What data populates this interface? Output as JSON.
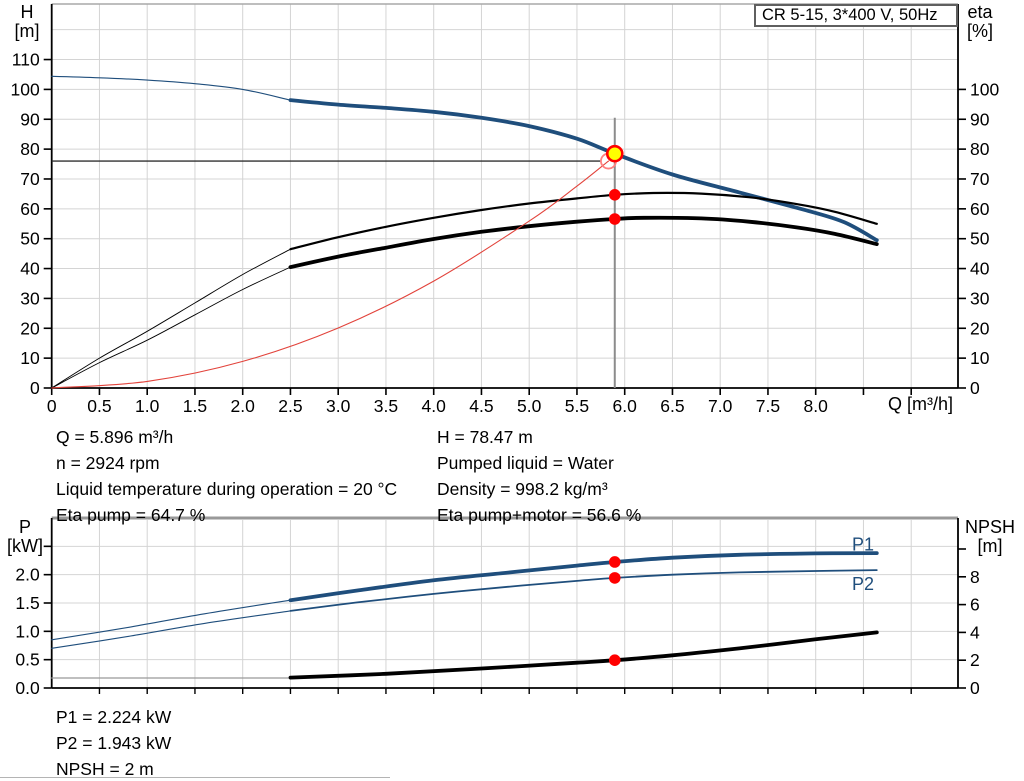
{
  "title_box": {
    "label": "CR 5-15, 3*400 V, 50Hz"
  },
  "colors": {
    "blue": "#1f4e7c",
    "black": "#000000",
    "red_curve": "#e2433b",
    "red_dot": "#ff0000",
    "red_ring": "#ff8080",
    "yellow": "#ffff00",
    "grid": "#d4d4d4",
    "axis": "#000000",
    "border_gray": "#a8a8a8",
    "border_gray2": "#999999",
    "op_line": "#8c8c8c",
    "ref_line": "#303030",
    "npsh_thin": "#999999"
  },
  "axis_labels": {
    "top_left_1": "H",
    "top_left_2": "[m]",
    "top_right_1": "eta",
    "top_right_2": "[%]",
    "x": "Q [m³/h]",
    "bottom_left_1": "P",
    "bottom_left_2": "[kW]",
    "bottom_right_1": "NPSH",
    "bottom_right_2": "[m]"
  },
  "annotations": {
    "left": [
      "Q = 5.896 m³/h",
      "n = 2924 rpm",
      "Liquid temperature during operation = 20 °C",
      "Eta pump = 64.7 %"
    ],
    "right": [
      "H = 78.47 m",
      "Pumped liquid = Water",
      "Density = 998.2 kg/m³",
      "Eta pump+motor = 56.6 %"
    ],
    "bottom": [
      "P1 = 2.224 kW",
      "P2 = 1.943 kW",
      "NPSH = 2 m"
    ]
  },
  "chart_data": [
    {
      "type": "line",
      "title": "CR 5-15, 3*400 V, 50Hz",
      "xlabel": "Q [m³/h]",
      "ylabel_left": "H [m]",
      "ylabel_right": "eta [%]",
      "xlim": [
        0,
        9.49
      ],
      "ylim_left": [
        0,
        128.6
      ],
      "ylim_right": [
        0,
        128.6
      ],
      "grid": true,
      "x_tick_values": [
        0,
        0.5,
        1,
        1.5,
        2,
        2.5,
        3,
        3.5,
        4,
        4.5,
        5,
        5.5,
        6,
        6.5,
        7,
        7.5,
        8
      ],
      "x_tick_labels": [
        "0",
        "0.5",
        "1.0",
        "1.5",
        "2.0",
        "2.5",
        "3.0",
        "3.5",
        "4.0",
        "4.5",
        "5.0",
        "5.5",
        "6.0",
        "6.5",
        "7.0",
        "7.5",
        "8.0"
      ],
      "x_minor_ticks": [
        8.5,
        9
      ],
      "left_tick_values": [
        0,
        10,
        20,
        30,
        40,
        50,
        60,
        70,
        80,
        90,
        100,
        110
      ],
      "right_tick_values": [
        0,
        10,
        20,
        30,
        40,
        50,
        60,
        70,
        80,
        90,
        100
      ],
      "series": [
        {
          "name": "qh-curve",
          "axis": "left",
          "color_key": "blue",
          "thin_width": 1.1,
          "thick_width": 3.8,
          "thick_from": 2.5,
          "points": [
            [
              0,
              104.4
            ],
            [
              0.5,
              103.9
            ],
            [
              1,
              103.1
            ],
            [
              1.5,
              101.9
            ],
            [
              2,
              100.0
            ],
            [
              2.5,
              96.4
            ],
            [
              3,
              94.9
            ],
            [
              3.5,
              93.8
            ],
            [
              4,
              92.5
            ],
            [
              4.5,
              90.5
            ],
            [
              5,
              87.7
            ],
            [
              5.5,
              83.5
            ],
            [
              5.896,
              78.47
            ],
            [
              6.5,
              71.5
            ],
            [
              7.2,
              65.5
            ],
            [
              7.9,
              59.5
            ],
            [
              8.3,
              55.5
            ],
            [
              8.64,
              49.5
            ]
          ]
        },
        {
          "name": "eta-pump-curve",
          "axis": "right",
          "color_key": "black",
          "thin_width": 0.9,
          "thick_width": 2.2,
          "thick_from": 2.5,
          "points": [
            [
              0,
              0
            ],
            [
              0.5,
              10
            ],
            [
              1,
              19
            ],
            [
              1.5,
              28.5
            ],
            [
              2,
              38
            ],
            [
              2.5,
              46.5
            ],
            [
              3,
              50.5
            ],
            [
              3.5,
              54
            ],
            [
              4,
              57
            ],
            [
              4.5,
              59.6
            ],
            [
              5,
              61.8
            ],
            [
              5.5,
              63.5
            ],
            [
              5.896,
              64.7
            ],
            [
              6.3,
              65.3
            ],
            [
              6.8,
              65.1
            ],
            [
              7.3,
              63.9
            ],
            [
              7.8,
              61.6
            ],
            [
              8.2,
              59
            ],
            [
              8.64,
              55
            ]
          ]
        },
        {
          "name": "eta-pump-motor-curve",
          "axis": "right",
          "color_key": "black",
          "thin_width": 0.9,
          "thick_width": 3.8,
          "thick_from": 2.5,
          "points": [
            [
              0,
              0
            ],
            [
              0.5,
              8.5
            ],
            [
              1,
              16
            ],
            [
              1.5,
              24.5
            ],
            [
              2,
              33
            ],
            [
              2.5,
              40.5
            ],
            [
              3,
              44
            ],
            [
              3.5,
              47
            ],
            [
              4,
              49.9
            ],
            [
              4.5,
              52.3
            ],
            [
              5,
              54.2
            ],
            [
              5.5,
              55.7
            ],
            [
              5.896,
              56.6
            ],
            [
              6.2,
              57
            ],
            [
              6.8,
              56.8
            ],
            [
              7.3,
              55.7
            ],
            [
              7.8,
              53.8
            ],
            [
              8.2,
              51.6
            ],
            [
              8.64,
              48.2
            ]
          ]
        },
        {
          "name": "system-curve",
          "axis": "left",
          "color_key": "red_curve",
          "thin_width": 1.1,
          "thick_width": 1.1,
          "thick_from": 99,
          "points": [
            [
              0,
              0
            ],
            [
              1,
              2.2
            ],
            [
              2,
              8.9
            ],
            [
              3,
              20.1
            ],
            [
              4,
              35.8
            ],
            [
              5,
              55.9
            ],
            [
              5.5,
              67.6
            ],
            [
              5.83,
              76
            ]
          ]
        }
      ],
      "ref_lines": {
        "horizontal_H": 76,
        "horizontal_to_Q": 5.83,
        "vertical_Q": 5.896,
        "vertical_top_H": 90.5
      },
      "markers": [
        {
          "kind": "open",
          "Q": 5.83,
          "value": 76,
          "axis": "left"
        },
        {
          "kind": "duty",
          "Q": 5.896,
          "value": 78.47,
          "axis": "left"
        },
        {
          "kind": "dot",
          "Q": 5.896,
          "value": 64.7,
          "axis": "right"
        },
        {
          "kind": "dot",
          "Q": 5.896,
          "value": 56.6,
          "axis": "right"
        }
      ]
    },
    {
      "type": "line",
      "title": "Power and NPSH curves",
      "xlabel": "Q [m³/h]",
      "ylabel_left": "P [kW]",
      "ylabel_right": "NPSH [m]",
      "xlim": [
        0,
        9.49
      ],
      "ylim_left": [
        0,
        3.0
      ],
      "ylim_right": [
        0,
        12.23
      ],
      "grid": true,
      "x_minor_ticks": [
        0.5,
        1,
        1.5,
        2,
        2.5,
        3,
        3.5,
        4,
        4.5,
        5,
        5.5,
        6,
        6.5,
        7,
        7.5,
        8,
        8.5,
        9
      ],
      "left_tick_values": [
        0,
        0.5,
        1,
        1.5,
        2
      ],
      "left_tick_labels": [
        "0.0",
        "0.5",
        "1.0",
        "1.5",
        "2.0"
      ],
      "left_minor_ticks": [
        2.5
      ],
      "right_tick_values": [
        0,
        2,
        4,
        6,
        8
      ],
      "right_minor_ticks": [
        10
      ],
      "series": [
        {
          "name": "npsh-lowflow-line",
          "axis": "right",
          "color_key": "npsh_thin",
          "thin_width": 1.2,
          "thick_width": 1.2,
          "thick_from": 99,
          "points": [
            [
              0,
              0.72
            ],
            [
              1.2,
              0.72
            ],
            [
              2.5,
              0.72
            ]
          ]
        },
        {
          "name": "p1-curve",
          "axis": "left",
          "color_key": "blue",
          "thin_width": 1.1,
          "thick_width": 3.8,
          "thick_from": 2.5,
          "points": [
            [
              0,
              0.85
            ],
            [
              0.8,
              1.07
            ],
            [
              1.6,
              1.31
            ],
            [
              2.5,
              1.55
            ],
            [
              3.2,
              1.72
            ],
            [
              4,
              1.9
            ],
            [
              4.8,
              2.04
            ],
            [
              5.5,
              2.16
            ],
            [
              5.896,
              2.224
            ],
            [
              6.5,
              2.3
            ],
            [
              7.2,
              2.35
            ],
            [
              8,
              2.375
            ],
            [
              8.64,
              2.38
            ]
          ]
        },
        {
          "name": "p2-curve",
          "axis": "left",
          "color_key": "blue",
          "thin_width": 1.1,
          "thick_width": 1.8,
          "thick_from": 2.5,
          "points": [
            [
              0,
              0.7
            ],
            [
              0.8,
              0.91
            ],
            [
              1.6,
              1.14
            ],
            [
              2.5,
              1.36
            ],
            [
              3.2,
              1.51
            ],
            [
              4,
              1.66
            ],
            [
              4.8,
              1.79
            ],
            [
              5.5,
              1.89
            ],
            [
              5.896,
              1.943
            ],
            [
              6.5,
              2.0
            ],
            [
              7.2,
              2.04
            ],
            [
              8,
              2.065
            ],
            [
              8.64,
              2.08
            ]
          ]
        },
        {
          "name": "npsh-curve",
          "axis": "right",
          "color_key": "black",
          "thin_width": 3.8,
          "thick_width": 3.8,
          "thick_from": 0,
          "points": [
            [
              2.5,
              0.75
            ],
            [
              3.5,
              1.02
            ],
            [
              4.5,
              1.4
            ],
            [
              5.5,
              1.82
            ],
            [
              5.896,
              2.0
            ],
            [
              6.5,
              2.35
            ],
            [
              7.2,
              2.85
            ],
            [
              8,
              3.5
            ],
            [
              8.64,
              4.0
            ]
          ]
        }
      ],
      "curve_labels": [
        {
          "text": "P1",
          "Q": 8.38,
          "value": 2.43,
          "axis": "left"
        },
        {
          "text": "P2",
          "Q": 8.38,
          "value": 1.73,
          "axis": "left"
        }
      ],
      "markers": [
        {
          "kind": "dot",
          "Q": 5.896,
          "value": 2.224,
          "axis": "left"
        },
        {
          "kind": "dot",
          "Q": 5.896,
          "value": 1.943,
          "axis": "left"
        },
        {
          "kind": "dot",
          "Q": 5.896,
          "value": 2.0,
          "axis": "right"
        }
      ]
    }
  ]
}
